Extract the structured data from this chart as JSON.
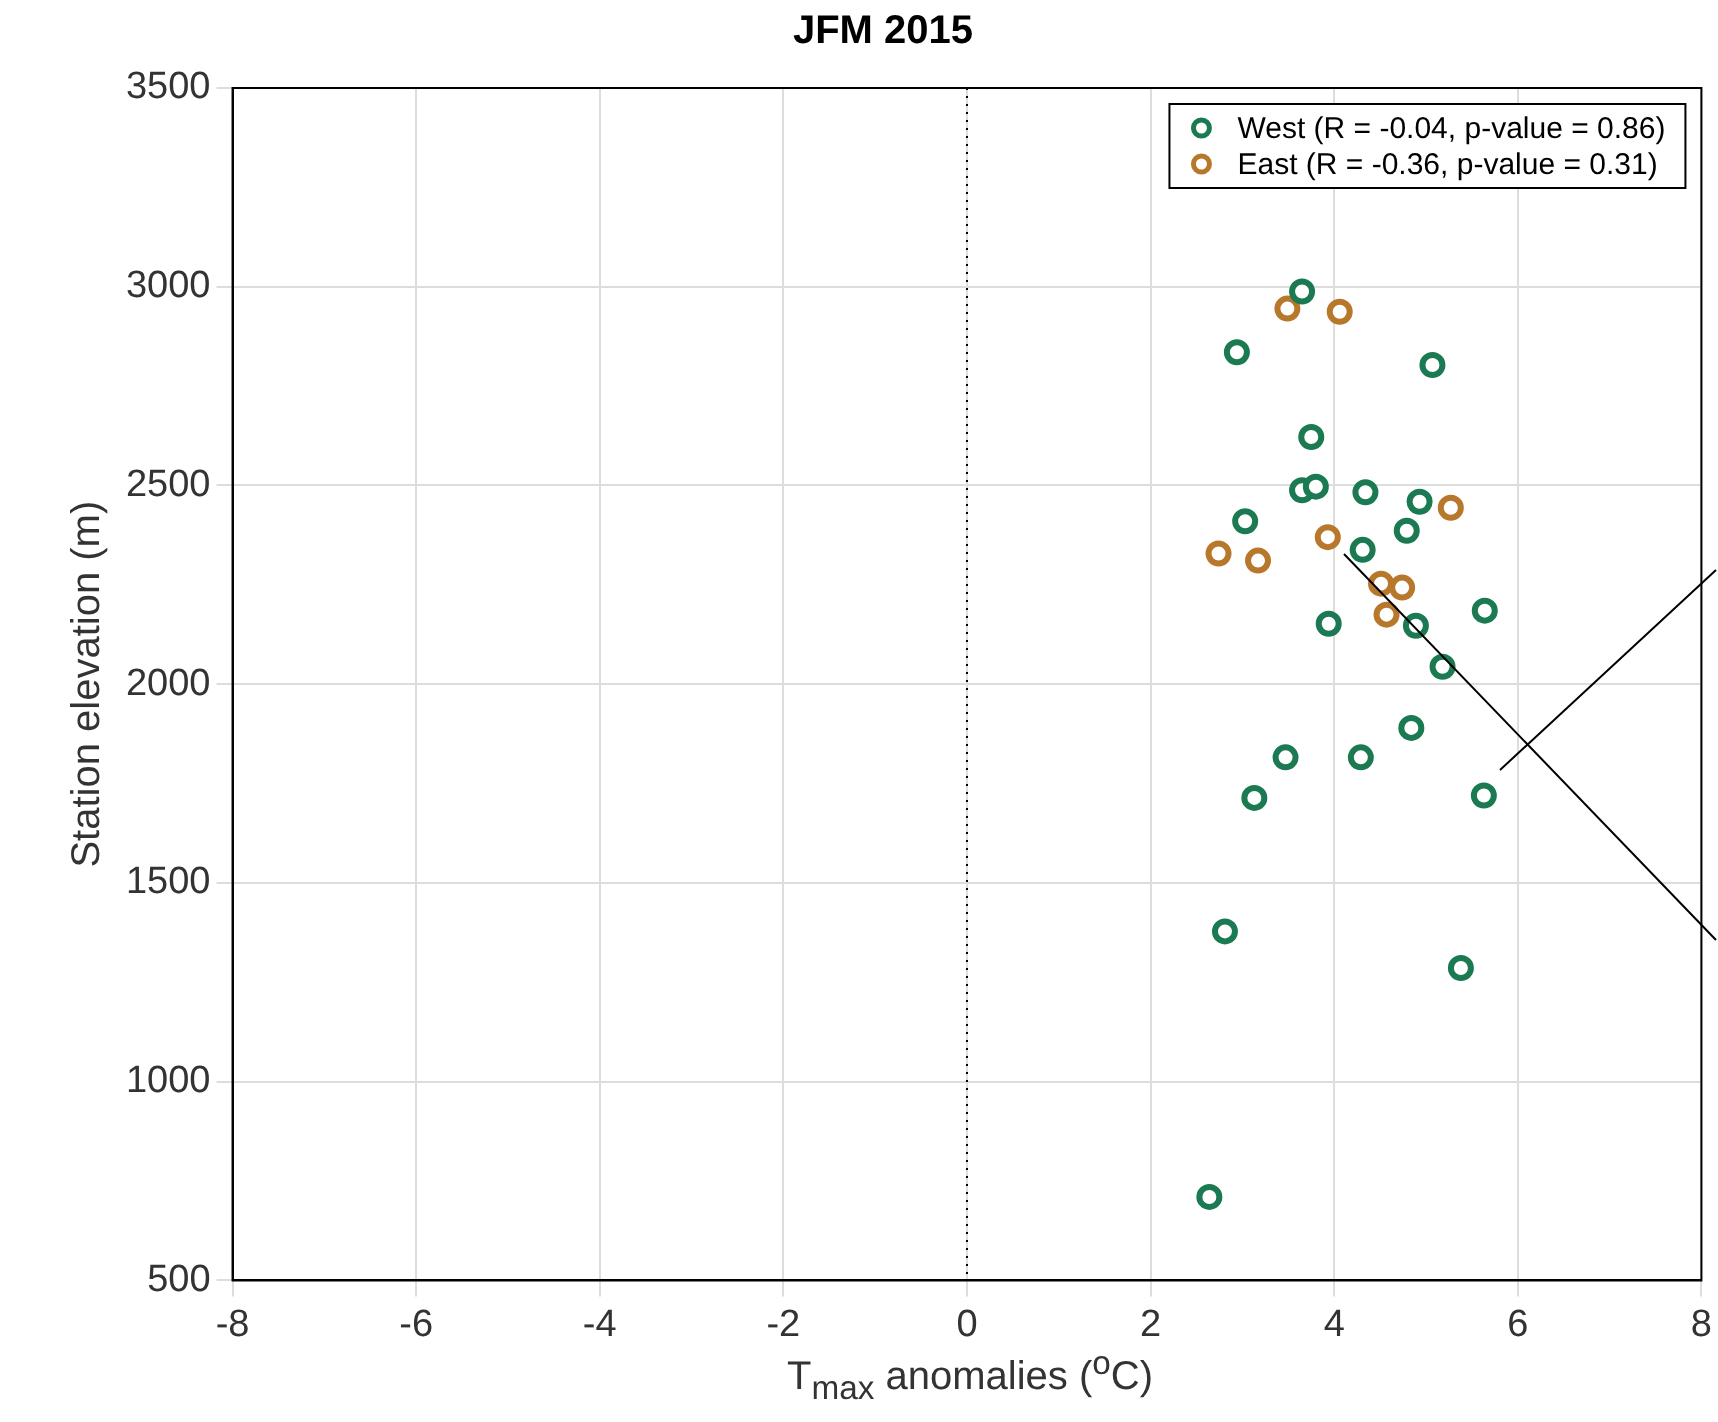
{
  "chart_data": {
    "type": "scatter",
    "title": "JFM 2015",
    "xlabel": "T$_{max}$ anomalies ($^{o}$C)",
    "ylabel": "Station elevation (m)",
    "xlim": [
      -8,
      8
    ],
    "xticks": [
      -8,
      -6,
      -4,
      -2,
      0,
      2,
      4,
      6,
      8
    ],
    "ylim": [
      500,
      3500
    ],
    "yticks": [
      500,
      1000,
      1500,
      2000,
      2500,
      3000,
      3500
    ],
    "grid": true,
    "legend": "top right",
    "marker": "circle",
    "ref_lines": [
      {
        "axis": "x",
        "value": 0,
        "color": "#000000",
        "line_style": "dotted"
      }
    ],
    "series": [
      {
        "name": "West (R = -0.04, p-value = 0.86)",
        "color": "#1b7a52",
        "x": [
          3.65,
          2.94,
          5.07,
          3.75,
          3.65,
          3.8,
          4.34,
          4.93,
          3.03,
          4.79,
          4.31,
          5.64,
          3.94,
          4.89,
          5.18,
          4.84,
          3.47,
          4.29,
          3.13,
          5.63,
          2.81,
          5.38,
          2.64
        ],
        "values": [
          2988,
          2835,
          2803,
          2622,
          2488,
          2497,
          2483,
          2459,
          2410,
          2386,
          2338,
          2185,
          2152,
          2147,
          2044,
          1890,
          1816,
          1816,
          1714,
          1720,
          1378,
          1286,
          710
        ]
      },
      {
        "name": "East (R = -0.36, p-value = 0.31)",
        "color": "#b8782c",
        "x": [
          3.49,
          4.06,
          5.27,
          3.93,
          2.74,
          3.17,
          4.51,
          4.74,
          4.63,
          4.57
        ],
        "values": [
          2945,
          2937,
          2444,
          2370,
          2329,
          2311,
          2253,
          2243,
          null,
          2175
        ]
      }
    ]
  }
}
